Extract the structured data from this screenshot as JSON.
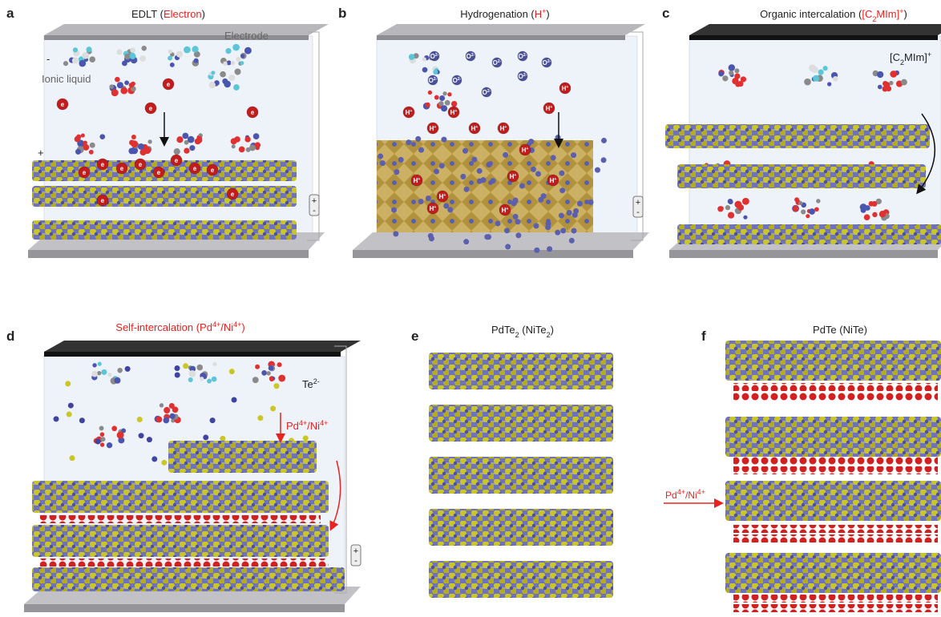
{
  "panels": [
    {
      "letter": "a",
      "title": [
        "EDLT (",
        "Electron",
        ")"
      ],
      "electrode": "Electrode",
      "ionic_liquid": "Ionic liquid",
      "minus": "-",
      "plus": "+",
      "electron": "e",
      "battery": [
        "+",
        "-"
      ]
    },
    {
      "letter": "b",
      "title": [
        "Hydrogenation (",
        "H",
        "+",
        ")"
      ],
      "proton": [
        "H",
        "+"
      ],
      "oxygen": [
        "O",
        "2-"
      ],
      "battery": [
        "+",
        "-"
      ]
    },
    {
      "letter": "c",
      "title": [
        "Organic intercalation (",
        "[C",
        "2",
        "MIm]",
        "+",
        ")"
      ],
      "cation": [
        "[C",
        "2",
        "MIm]",
        "+"
      ]
    },
    {
      "letter": "d",
      "title": [
        "Self-intercalation (Pd",
        "4+",
        "/Ni",
        "4+",
        ")"
      ],
      "anion": [
        "Te",
        "2-"
      ],
      "cation": [
        "Pd",
        "4+",
        "/Ni",
        "4+"
      ],
      "battery": [
        "+",
        "-"
      ]
    },
    {
      "letter": "e",
      "title": [
        "PdTe",
        "2",
        " (NiTe",
        "2",
        ")"
      ]
    },
    {
      "letter": "f",
      "title": [
        "PdTe (NiTe)"
      ]
    }
  ],
  "arrow_label": [
    "Pd",
    "4+",
    "/Ni",
    "4+"
  ]
}
